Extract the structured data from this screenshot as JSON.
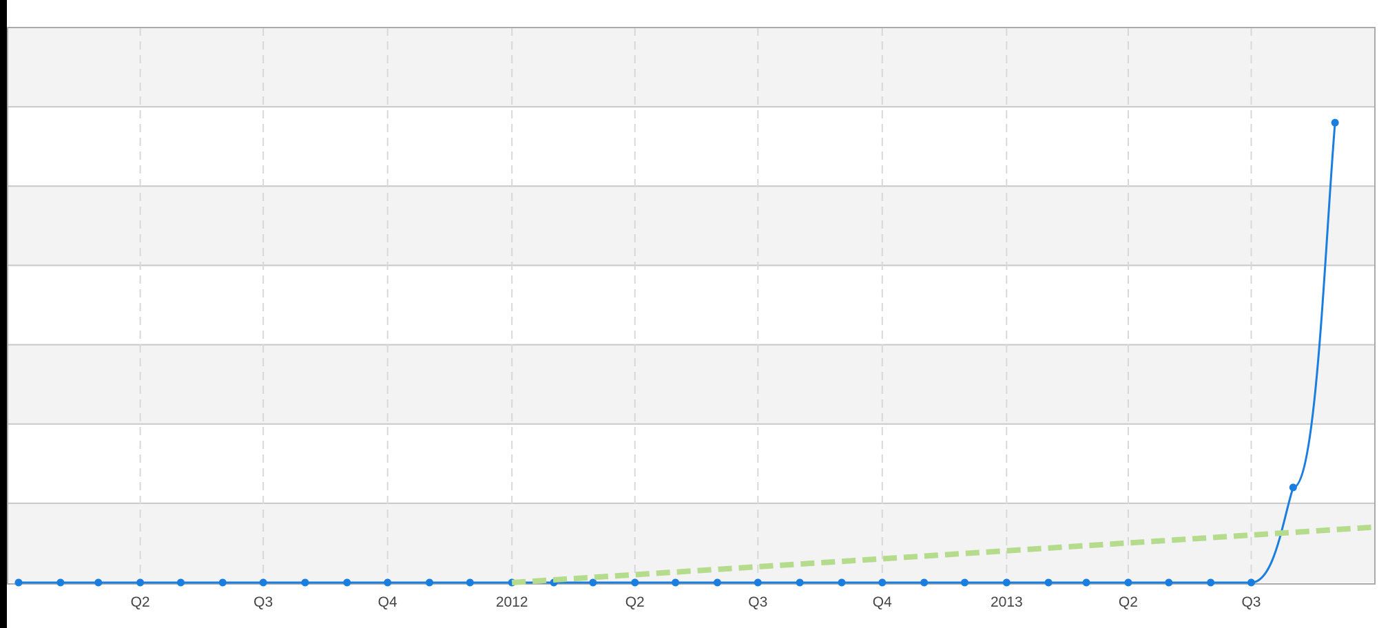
{
  "chart_data": {
    "type": "line",
    "title": "",
    "xlabel": "",
    "ylabel": "",
    "x_tick_labels": [
      "Q2",
      "Q3",
      "Q4",
      "2012",
      "Q2",
      "Q3",
      "Q4",
      "2013",
      "Q2",
      "Q3"
    ],
    "x_tick_dates": [
      "2011-04-01",
      "2011-07-01",
      "2011-10-01",
      "2012-01-01",
      "2012-04-01",
      "2012-07-01",
      "2012-10-01",
      "2013-01-01",
      "2013-04-01",
      "2013-07-01"
    ],
    "xlim": [
      "2011-01-01",
      "2013-10-01"
    ],
    "ylim": [
      0,
      7
    ],
    "y_gridlines": [
      1,
      2,
      3,
      4,
      5,
      6
    ],
    "y_band_colors": [
      "#f3f3f3",
      "#ffffff"
    ],
    "grid": true,
    "legend": "none",
    "series": [
      {
        "style": "solid",
        "color": "#1a7de0",
        "points": [
          [
            "2011-01-01",
            0
          ],
          [
            "2011-02-01",
            0
          ],
          [
            "2011-03-01",
            0
          ],
          [
            "2011-04-01",
            0
          ],
          [
            "2011-05-01",
            0
          ],
          [
            "2011-06-01",
            0
          ],
          [
            "2011-07-01",
            0
          ],
          [
            "2011-08-01",
            0
          ],
          [
            "2011-09-01",
            0
          ],
          [
            "2011-10-01",
            0
          ],
          [
            "2011-11-01",
            0
          ],
          [
            "2011-12-01",
            0
          ],
          [
            "2012-01-01",
            0
          ],
          [
            "2012-02-01",
            0
          ],
          [
            "2012-03-01",
            0
          ],
          [
            "2012-04-01",
            0
          ],
          [
            "2012-05-01",
            0
          ],
          [
            "2012-06-01",
            0
          ],
          [
            "2012-07-01",
            0
          ],
          [
            "2012-08-01",
            0
          ],
          [
            "2012-09-01",
            0
          ],
          [
            "2012-10-01",
            0
          ],
          [
            "2012-11-01",
            0
          ],
          [
            "2012-12-01",
            0
          ],
          [
            "2013-01-01",
            0
          ],
          [
            "2013-02-01",
            0
          ],
          [
            "2013-03-01",
            0
          ],
          [
            "2013-04-01",
            0
          ],
          [
            "2013-05-01",
            0
          ],
          [
            "2013-06-01",
            0
          ],
          [
            "2013-07-01",
            0
          ],
          [
            "2013-08-01",
            1.2
          ],
          [
            "2013-09-01",
            5.8
          ]
        ]
      },
      {
        "style": "dashed",
        "color": "#b5dc8c",
        "points": [
          [
            "2012-01-01",
            0
          ],
          [
            "2013-10-01",
            0.7
          ]
        ]
      }
    ]
  }
}
